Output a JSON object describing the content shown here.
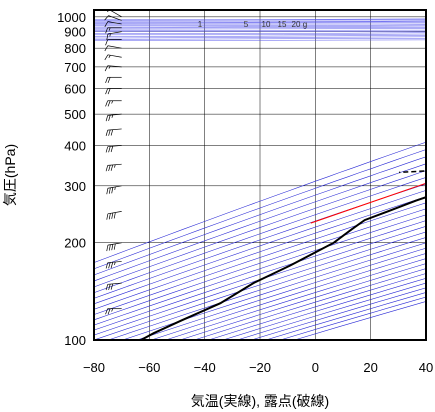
{
  "chart_data": {
    "type": "line",
    "title": "",
    "xlabel": "気温(実線), 露点(破線)",
    "ylabel": "気圧(hPa)",
    "xlim": [
      -80,
      40
    ],
    "ylim_hpa": [
      1050,
      100
    ],
    "y_scale": "log",
    "grid": true,
    "x_ticks": [
      "−80",
      "−60",
      "−40",
      "−20",
      "0",
      "20",
      "40"
    ],
    "y_ticks": [
      {
        "p": 100,
        "label": "100"
      },
      {
        "p": 200,
        "label": "200"
      },
      {
        "p": 300,
        "label": "300"
      },
      {
        "p": 400,
        "label": "400"
      },
      {
        "p": 500,
        "label": "500"
      },
      {
        "p": 600,
        "label": "600"
      },
      {
        "p": 700,
        "label": "700"
      },
      {
        "p": 800,
        "label": "800"
      },
      {
        "p": 900,
        "label": "900"
      },
      {
        "p": 1000,
        "label": "1000"
      }
    ],
    "mixing_ratio_labels": [
      "1",
      "5",
      "10",
      "15",
      "20",
      "g"
    ],
    "mixing_ratio_values": [
      1,
      5,
      10,
      15,
      20
    ],
    "colors": {
      "temperature": "#000000",
      "dewpoint": "#000000",
      "parcel": "#ff0000",
      "dry_adiabat": "#2b2bd6",
      "moist_adiabat": "#5a5aee",
      "grid": "#000000",
      "wind_barb": "#000000"
    },
    "series": [
      {
        "line_style": "solid",
        "points": [
          {
            "p": 1000,
            "t": 8.5
          },
          {
            "p": 975,
            "t": 7.5
          },
          {
            "p": 950,
            "t": 9.5
          },
          {
            "p": 925,
            "t": 10.0
          },
          {
            "p": 900,
            "t": 9.0
          },
          {
            "p": 850,
            "t": 5.0
          },
          {
            "p": 800,
            "t": 1.5
          },
          {
            "p": 750,
            "t": -2.0
          },
          {
            "p": 700,
            "t": -7.0
          },
          {
            "p": 650,
            "t": -11.5
          },
          {
            "p": 600,
            "t": -16.0
          },
          {
            "p": 550,
            "t": -21.0
          },
          {
            "p": 500,
            "t": -26.0
          },
          {
            "p": 450,
            "t": -31.0
          },
          {
            "p": 400,
            "t": -37.0
          },
          {
            "p": 350,
            "t": -44.0
          },
          {
            "p": 300,
            "t": -51.5
          },
          {
            "p": 270,
            "t": -57.0
          },
          {
            "p": 250,
            "t": -60.0
          },
          {
            "p": 235,
            "t": -62.5
          },
          {
            "p": 220,
            "t": -61.0
          },
          {
            "p": 200,
            "t": -58.5
          },
          {
            "p": 170,
            "t": -59.0
          },
          {
            "p": 150,
            "t": -60.5
          },
          {
            "p": 130,
            "t": -59.0
          },
          {
            "p": 115,
            "t": -61.5
          },
          {
            "p": 105,
            "t": -63.0
          },
          {
            "p": 100,
            "t": -63.0
          }
        ]
      },
      {
        "line_style": "dashed",
        "points": [
          {
            "p": 1000,
            "t": 3.5
          },
          {
            "p": 950,
            "t": 3.0
          },
          {
            "p": 925,
            "t": 6.0
          },
          {
            "p": 900,
            "t": 0.5
          },
          {
            "p": 880,
            "t": -18.0
          },
          {
            "p": 850,
            "t": -20.0
          },
          {
            "p": 800,
            "t": -21.0
          },
          {
            "p": 760,
            "t": -26.0
          },
          {
            "p": 720,
            "t": -27.0
          },
          {
            "p": 700,
            "t": -34.0
          },
          {
            "p": 680,
            "t": -29.0
          },
          {
            "p": 650,
            "t": -28.0
          },
          {
            "p": 600,
            "t": -31.0
          },
          {
            "p": 550,
            "t": -35.0
          },
          {
            "p": 500,
            "t": -39.0
          },
          {
            "p": 460,
            "t": -42.0
          },
          {
            "p": 430,
            "t": -40.0
          },
          {
            "p": 400,
            "t": -48.0
          },
          {
            "p": 380,
            "t": -44.0
          },
          {
            "p": 360,
            "t": -41.0
          },
          {
            "p": 345,
            "t": -46.0
          },
          {
            "p": 330,
            "t": -82.0
          }
        ]
      },
      {
        "line_style": "solid",
        "points": [
          {
            "p": 950,
            "t": 1.5
          },
          {
            "p": 850,
            "t": -6.0
          },
          {
            "p": 700,
            "t": -18.0
          },
          {
            "p": 500,
            "t": -37.0
          },
          {
            "p": 400,
            "t": -50.0
          },
          {
            "p": 300,
            "t": -66.0
          },
          {
            "p": 230,
            "t": -80.0
          }
        ]
      }
    ],
    "wind_barbs": [
      {
        "p": 1000,
        "speed": 5,
        "dir": 300
      },
      {
        "p": 975,
        "speed": 10,
        "dir": 290
      },
      {
        "p": 950,
        "speed": 10,
        "dir": 280
      },
      {
        "p": 925,
        "speed": 15,
        "dir": 270
      },
      {
        "p": 900,
        "speed": 15,
        "dir": 260
      },
      {
        "p": 850,
        "speed": 10,
        "dir": 270
      },
      {
        "p": 800,
        "speed": 10,
        "dir": 280
      },
      {
        "p": 750,
        "speed": 15,
        "dir": 280
      },
      {
        "p": 700,
        "speed": 15,
        "dir": 275
      },
      {
        "p": 650,
        "speed": 20,
        "dir": 270
      },
      {
        "p": 600,
        "speed": 20,
        "dir": 270
      },
      {
        "p": 550,
        "speed": 25,
        "dir": 270
      },
      {
        "p": 500,
        "speed": 25,
        "dir": 265
      },
      {
        "p": 450,
        "speed": 30,
        "dir": 265
      },
      {
        "p": 400,
        "speed": 30,
        "dir": 265
      },
      {
        "p": 350,
        "speed": 35,
        "dir": 265
      },
      {
        "p": 300,
        "speed": 35,
        "dir": 260
      },
      {
        "p": 250,
        "speed": 40,
        "dir": 260
      },
      {
        "p": 200,
        "speed": 40,
        "dir": 260
      },
      {
        "p": 175,
        "speed": 35,
        "dir": 265
      },
      {
        "p": 150,
        "speed": 30,
        "dir": 265
      },
      {
        "p": 125,
        "speed": 25,
        "dir": 270
      },
      {
        "p": 100,
        "speed": 20,
        "dir": 270
      }
    ]
  }
}
